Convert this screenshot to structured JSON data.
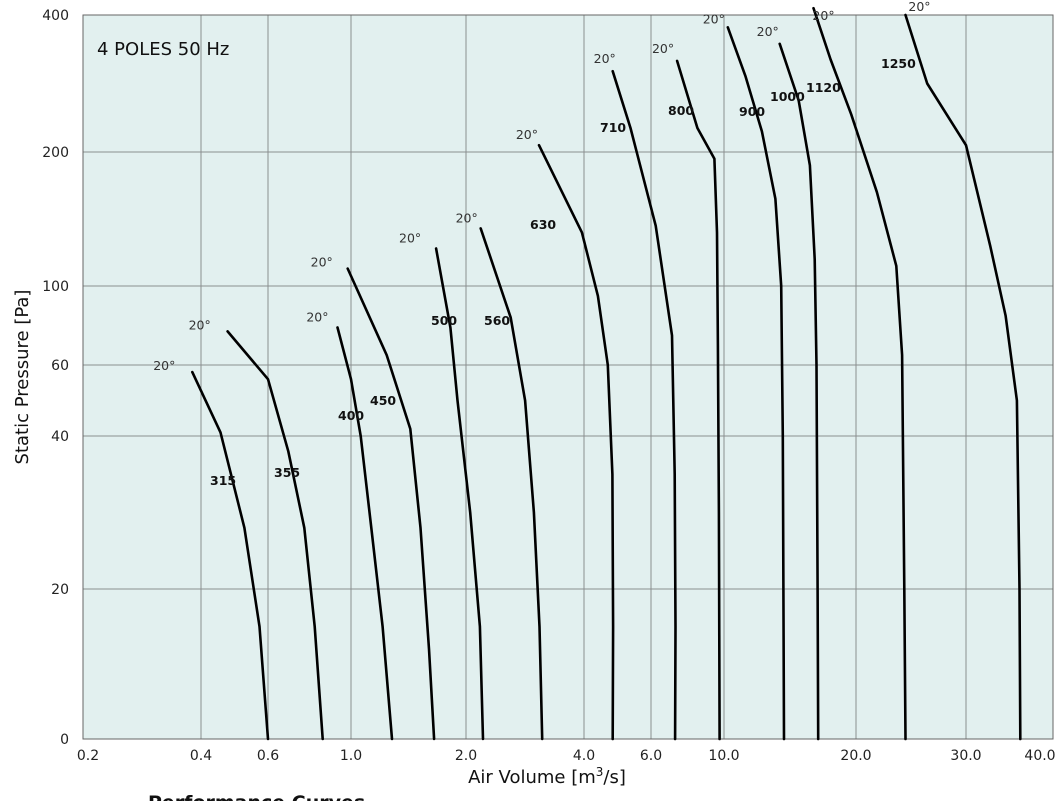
{
  "page": {
    "caption": "Performance Curves"
  },
  "chart_data": {
    "type": "line",
    "annotation": "4 POLES 50 Hz",
    "xlabel": "Air Volume [m³/s]",
    "ylabel": "Static Pressure [Pa]",
    "x_ticks": [
      "0.2",
      "0.4",
      "0.6",
      "1.0",
      "2.0",
      "4.0",
      "6.0",
      "10.0",
      "20.0",
      "30.0",
      "40.0"
    ],
    "y_ticks": [
      "400",
      "200",
      "100",
      "60",
      "40",
      "20",
      "0"
    ],
    "grid": true,
    "background": "#e2f0ef",
    "line_color": "#000000",
    "angle_label": "20°",
    "series": [
      {
        "name": "315",
        "points": [
          [
            0.38,
            58
          ],
          [
            0.45,
            41
          ],
          [
            0.52,
            28
          ],
          [
            0.57,
            15
          ],
          [
            0.6,
            0
          ]
        ]
      },
      {
        "name": "355",
        "points": [
          [
            0.47,
            77
          ],
          [
            0.6,
            56
          ],
          [
            0.68,
            38
          ],
          [
            0.75,
            28
          ],
          [
            0.8,
            15
          ],
          [
            0.84,
            0
          ]
        ]
      },
      {
        "name": "400",
        "points": [
          [
            0.92,
            79
          ],
          [
            1.0,
            56
          ],
          [
            1.06,
            40
          ],
          [
            1.13,
            28
          ],
          [
            1.21,
            15
          ],
          [
            1.28,
            0
          ]
        ]
      },
      {
        "name": "450",
        "points": [
          [
            0.98,
            113
          ],
          [
            1.24,
            65
          ],
          [
            1.43,
            42
          ],
          [
            1.52,
            28
          ],
          [
            1.6,
            12
          ],
          [
            1.65,
            0
          ]
        ]
      },
      {
        "name": "500",
        "points": [
          [
            1.67,
            128
          ],
          [
            1.82,
            79
          ],
          [
            1.9,
            50
          ],
          [
            2.05,
            30
          ],
          [
            2.17,
            15
          ],
          [
            2.21,
            0
          ]
        ]
      },
      {
        "name": "560",
        "points": [
          [
            2.18,
            143
          ],
          [
            2.6,
            84
          ],
          [
            2.83,
            50
          ],
          [
            2.98,
            30
          ],
          [
            3.08,
            15
          ],
          [
            3.13,
            0
          ]
        ]
      },
      {
        "name": "630",
        "points": [
          [
            3.07,
            210
          ],
          [
            3.95,
            140
          ],
          [
            4.35,
            95
          ],
          [
            4.62,
            60
          ],
          [
            4.75,
            35
          ],
          [
            4.77,
            15
          ],
          [
            4.76,
            0
          ]
        ]
      },
      {
        "name": "710",
        "points": [
          [
            4.76,
            318
          ],
          [
            5.3,
            235
          ],
          [
            6.2,
            145
          ],
          [
            6.95,
            75
          ],
          [
            7.08,
            35
          ],
          [
            7.12,
            15
          ],
          [
            7.1,
            0
          ]
        ]
      },
      {
        "name": "800",
        "points": [
          [
            7.2,
            333
          ],
          [
            8.3,
            235
          ],
          [
            9.35,
            195
          ],
          [
            9.52,
            140
          ],
          [
            9.58,
            70
          ],
          [
            9.65,
            30
          ],
          [
            9.7,
            0
          ]
        ]
      },
      {
        "name": "900",
        "points": [
          [
            10.2,
            382
          ],
          [
            11.2,
            310
          ],
          [
            12.2,
            230
          ],
          [
            13.1,
            165
          ],
          [
            13.5,
            100
          ],
          [
            13.62,
            40
          ],
          [
            13.7,
            0
          ]
        ]
      },
      {
        "name": "1000",
        "points": [
          [
            13.4,
            358
          ],
          [
            14.8,
            275
          ],
          [
            15.7,
            190
          ],
          [
            16.1,
            120
          ],
          [
            16.25,
            60
          ],
          [
            16.35,
            20
          ],
          [
            16.4,
            0
          ]
        ]
      },
      {
        "name": "1120",
        "points": [
          [
            16.0,
            410
          ],
          [
            17.5,
            335
          ],
          [
            19.5,
            255
          ],
          [
            21.6,
            170
          ],
          [
            23.2,
            115
          ],
          [
            23.7,
            65
          ],
          [
            23.9,
            20
          ],
          [
            24.0,
            0
          ]
        ]
      },
      {
        "name": "1250",
        "points": [
          [
            24.0,
            400
          ],
          [
            26.0,
            300
          ],
          [
            30.0,
            210
          ],
          [
            32.5,
            130
          ],
          [
            34.2,
            85
          ],
          [
            35.5,
            50
          ],
          [
            35.8,
            20
          ],
          [
            35.9,
            0
          ]
        ]
      }
    ]
  }
}
